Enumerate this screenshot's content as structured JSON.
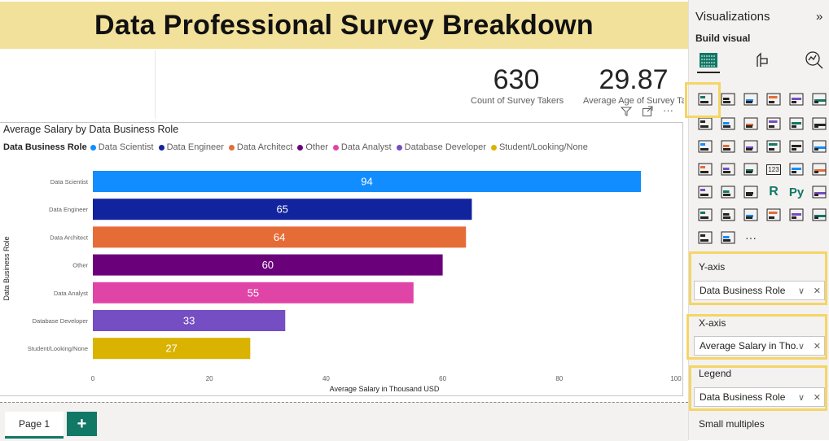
{
  "header": {
    "title": "Data Professional Survey Breakdown"
  },
  "kpis": [
    {
      "value": "630",
      "label": "Count of Survey Takers"
    },
    {
      "value": "29.87",
      "label": "Average Age of Survey Ta"
    }
  ],
  "chart_panel": {
    "title": "Average Salary by Data Business Role",
    "legend_title": "Data Business Role"
  },
  "chart_data": {
    "type": "bar",
    "orientation": "horizontal",
    "title": "Average Salary by Data Business Role",
    "xlabel": "Average Salary in Thousand USD",
    "ylabel": "Data Business Role",
    "xlim": [
      0,
      100
    ],
    "xticks": [
      0,
      20,
      40,
      60,
      80,
      100
    ],
    "legend_position": "top-left",
    "grid": false,
    "categories": [
      "Data Scientist",
      "Data Engineer",
      "Data Architect",
      "Other",
      "Data Analyst",
      "Database Developer",
      "Student/Looking/None"
    ],
    "values": [
      94,
      65,
      64,
      60,
      55,
      33,
      27
    ],
    "colors": [
      "#118dff",
      "#12239e",
      "#e66c37",
      "#6b007b",
      "#e044a7",
      "#744ec2",
      "#d9b300"
    ]
  },
  "footer": {
    "page_tab": "Page 1",
    "add_page": "+"
  },
  "pane": {
    "title": "Visualizations",
    "collapse": "»",
    "build_visual": "Build visual",
    "wells": [
      {
        "label": "Y-axis",
        "field": "Data Business Role"
      },
      {
        "label": "X-axis",
        "field": "Average Salary in Tho..."
      },
      {
        "label": "Legend",
        "field": "Data Business Role"
      }
    ],
    "small_multiples": "Small multiples",
    "more": "···",
    "gallery_text": {
      "r": "R",
      "py": "Py",
      "num": "123"
    }
  },
  "accent": "#117865",
  "highlight": "#f5d565"
}
